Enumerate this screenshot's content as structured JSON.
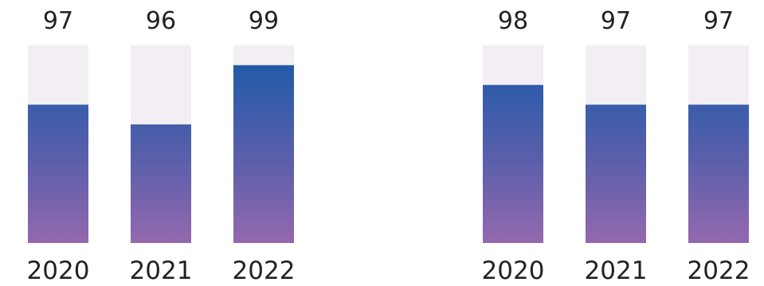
{
  "chart_data": [
    {
      "type": "bar",
      "categories": [
        "2020",
        "2021",
        "2022"
      ],
      "values": [
        97,
        96,
        99
      ],
      "title": "",
      "xlabel": "",
      "ylabel": "",
      "ylim": [
        90,
        100
      ],
      "grid": false,
      "data_labels": [
        "97",
        "96",
        "99"
      ]
    },
    {
      "type": "bar",
      "categories": [
        "2020",
        "2021",
        "2022"
      ],
      "values": [
        98,
        97,
        97
      ],
      "title": "",
      "xlabel": "",
      "ylabel": "",
      "ylim": [
        90,
        100
      ],
      "grid": false,
      "data_labels": [
        "98",
        "97",
        "97"
      ]
    }
  ],
  "colors": {
    "track": "#f3eef4",
    "fill_top": "#1f5aa8",
    "fill_mid": "#5b5fab",
    "fill_bottom": "#9468ae",
    "text": "#222222"
  }
}
